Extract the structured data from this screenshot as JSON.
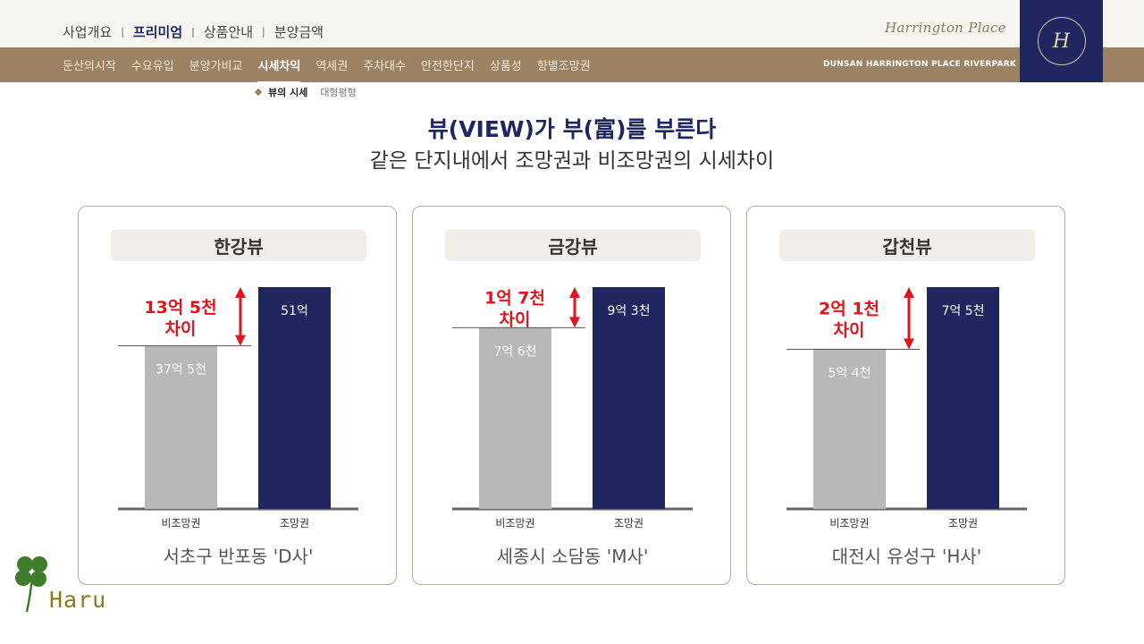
{
  "top_nav": {
    "items": [
      "사업개요",
      "프리미엄",
      "상품안내",
      "분양금액"
    ],
    "active_index": 1
  },
  "brand": {
    "script_name": "Harrington Place",
    "logo_monogram": "H"
  },
  "sub_nav": {
    "items": [
      "둔산의시작",
      "수요유입",
      "분양가비교",
      "시세차익",
      "역세권",
      "주차대수",
      "안전한단지",
      "상품성",
      "향별조망권"
    ],
    "active_index": 3,
    "project_name": "DUNSAN HARRINGTON PLACE RIVERPARK"
  },
  "tertiary_nav": {
    "active": "뷰의 시세",
    "other": "대형평형"
  },
  "headline": "뷰(VIEW)가 부(富)를 부른다",
  "subheadline": "같은 단지내에서 조망권과 비조망권의 시세차이",
  "colors": {
    "navy": "#1f2660",
    "bar_gray": "#b8b8b8",
    "brown": "#9c8263",
    "accent_red": "#e0141c"
  },
  "chart_data": [
    {
      "type": "bar",
      "title": "한강뷰",
      "categories": [
        "비조망권",
        "조망권"
      ],
      "values": [
        37.5,
        51
      ],
      "value_labels": [
        "37억 5천",
        "51억"
      ],
      "difference": 13.5,
      "difference_label": [
        "13억 5천",
        "차이"
      ],
      "location": "서초구 반포동 'D사'"
    },
    {
      "type": "bar",
      "title": "금강뷰",
      "categories": [
        "비조망권",
        "조망권"
      ],
      "values": [
        7.6,
        9.3
      ],
      "value_labels": [
        "7억 6천",
        "9억 3천"
      ],
      "difference": 1.7,
      "difference_label": [
        "1억 7천",
        "차이"
      ],
      "location": "세종시 소담동 'M사'"
    },
    {
      "type": "bar",
      "title": "갑천뷰",
      "categories": [
        "비조망권",
        "조망권"
      ],
      "values": [
        5.4,
        7.5
      ],
      "value_labels": [
        "5억 4천",
        "7억 5천"
      ],
      "difference": 2.1,
      "difference_label": [
        "2억 1천",
        "차이"
      ],
      "location": "대전시 유성구 'H사'"
    }
  ],
  "watermark": "Haru",
  "icons": {
    "logo": "monogram-logo-icon",
    "clover": "clover-icon",
    "arrow": "double-arrow-icon"
  }
}
